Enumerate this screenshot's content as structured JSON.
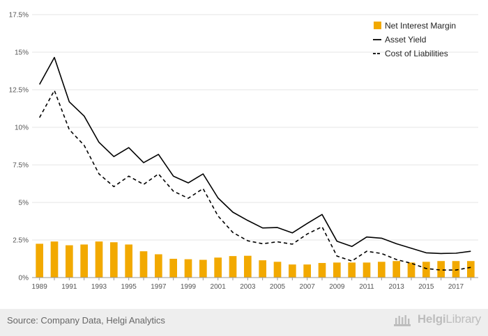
{
  "chart_data": {
    "type": "bar",
    "title": "",
    "xlabel": "",
    "ylabel": "",
    "ylim": [
      0,
      17.5
    ],
    "yticks": [
      "0%",
      "2.5%",
      "5%",
      "7.5%",
      "10%",
      "12.5%",
      "15%",
      "17.5%"
    ],
    "ytick_values": [
      0,
      2.5,
      5,
      7.5,
      10,
      12.5,
      15,
      17.5
    ],
    "grid": true,
    "legend_position": "top-right",
    "categories": [
      "1989",
      "1990",
      "1991",
      "1992",
      "1993",
      "1994",
      "1995",
      "1996",
      "1997",
      "1998",
      "1999",
      "2000",
      "2001",
      "2002",
      "2003",
      "2004",
      "2005",
      "2006",
      "2007",
      "2008",
      "2009",
      "2010",
      "2011",
      "2012",
      "2013",
      "2014",
      "2015",
      "2016",
      "2017",
      "2018"
    ],
    "xtick_labels": [
      "1989",
      "1991",
      "1993",
      "1995",
      "1997",
      "1999",
      "2001",
      "2003",
      "2005",
      "2007",
      "2009",
      "2011",
      "2013",
      "2015",
      "2017"
    ],
    "series": [
      {
        "name": "Net Interest Margin",
        "kind": "bar",
        "color": "#f2a900",
        "values": [
          2.25,
          2.4,
          2.15,
          2.2,
          2.4,
          2.35,
          2.2,
          1.75,
          1.55,
          1.25,
          1.22,
          1.18,
          1.33,
          1.43,
          1.45,
          1.15,
          1.05,
          0.87,
          0.87,
          0.97,
          1.0,
          1.0,
          1.0,
          1.05,
          1.1,
          1.0,
          1.05,
          1.1,
          1.1,
          1.1
        ]
      },
      {
        "name": "Asset Yield",
        "kind": "line",
        "color": "#000000",
        "dash": "solid",
        "values": [
          12.85,
          14.65,
          11.7,
          10.75,
          9.0,
          8.05,
          8.65,
          7.65,
          8.2,
          6.75,
          6.3,
          6.9,
          5.3,
          4.35,
          3.8,
          3.3,
          3.33,
          2.97,
          3.6,
          4.2,
          2.42,
          2.07,
          2.7,
          2.62,
          2.25,
          1.95,
          1.65,
          1.6,
          1.62,
          1.75
        ]
      },
      {
        "name": "Cost of Liabilities",
        "kind": "line",
        "color": "#000000",
        "dash": "dashed",
        "values": [
          10.65,
          12.45,
          9.85,
          8.8,
          6.9,
          6.05,
          6.75,
          6.2,
          6.9,
          5.75,
          5.28,
          5.92,
          4.1,
          3.0,
          2.45,
          2.25,
          2.38,
          2.22,
          2.9,
          3.38,
          1.43,
          1.1,
          1.75,
          1.6,
          1.2,
          0.95,
          0.6,
          0.5,
          0.5,
          0.68
        ]
      }
    ]
  },
  "footer": {
    "source": "Source: Company Data, Helgi Analytics",
    "brand_prefix": "Helgi",
    "brand_suffix": "Library",
    "brand_color": "#bdbdbd"
  }
}
